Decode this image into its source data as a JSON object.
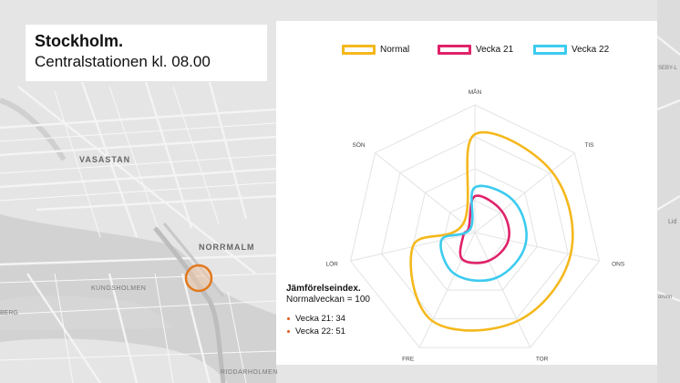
{
  "header": {
    "city": "Stockholm.",
    "subtitle": "Centralstationen kl. 08.00"
  },
  "map": {
    "labels": [
      "VASASTAN",
      "NORRMALM",
      "KUNGSHOLMEN",
      "RIDDARHOLMEN",
      "BERG",
      "SEBY-L",
      "Lid",
      "orunn"
    ],
    "marker_color": "#e2791e"
  },
  "legend": [
    {
      "label": "Normal",
      "color": "#f5b81c"
    },
    {
      "label": "Vecka 21",
      "color": "#e0226a"
    },
    {
      "label": "Vecka 22",
      "color": "#3ccbef"
    }
  ],
  "note": {
    "title": "Jämförelseindex.",
    "subtitle": "Normalveckan = 100",
    "items": [
      "Vecka 21: 34",
      "Vecka 22: 51"
    ],
    "bullet_color": "#e2591e"
  },
  "chart_data": {
    "type": "radar",
    "categories": [
      "MÅN",
      "TIS",
      "ONS",
      "TOR",
      "FRE",
      "LÖR",
      "SÖN"
    ],
    "series": [
      {
        "name": "Normal",
        "color": "#f5b81c",
        "values": [
          100,
          100,
          100,
          100,
          100,
          65,
          15
        ]
      },
      {
        "name": "Vecka 21",
        "color": "#e0226a",
        "values": [
          37,
          35,
          35,
          32,
          30,
          12,
          8
        ]
      },
      {
        "name": "Vecka 22",
        "color": "#3ccbef",
        "values": [
          46,
          51,
          53,
          51,
          47,
          35,
          6
        ]
      }
    ],
    "rmax": 130,
    "grid_rings": 4,
    "grid": true,
    "legend_position": "top"
  }
}
